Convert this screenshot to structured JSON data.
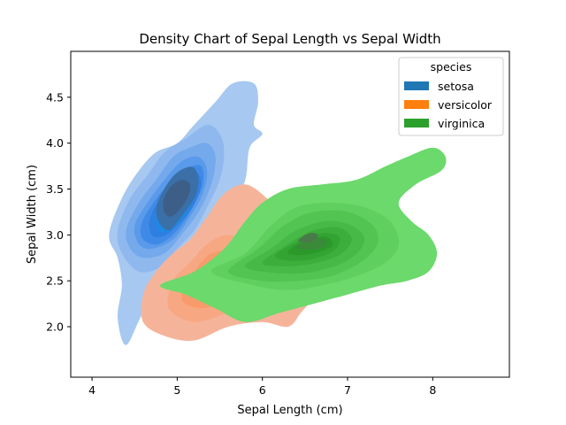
{
  "chart_data": {
    "type": "kde_density",
    "title": "Density Chart of Sepal Length vs Sepal Width",
    "xlabel": "Sepal Length (cm)",
    "ylabel": "Sepal Width (cm)",
    "xlim": [
      3.75,
      8.9
    ],
    "ylim": [
      1.45,
      5.0
    ],
    "xticks": [
      4,
      5,
      6,
      7,
      8
    ],
    "yticks": [
      2.0,
      2.5,
      3.0,
      3.5,
      4.0,
      4.5
    ],
    "grid": false,
    "legend": {
      "title": "species",
      "placement": "top-right"
    },
    "series": [
      {
        "name": "setosa",
        "color": "#1f77b4",
        "fill_colors": [
          "#a7c8f0",
          "#8fb9ee",
          "#74a9ec",
          "#5a9aea",
          "#3f8ae6",
          "#2e7fe0",
          "#1e88e5",
          "#3b6fa8",
          "#3d5e87"
        ],
        "center": [
          5.0,
          3.4
        ],
        "contours": [
          [
            [
              4.3,
              2.75
            ],
            [
              4.2,
              3.0
            ],
            [
              4.35,
              3.4
            ],
            [
              4.55,
              3.7
            ],
            [
              4.75,
              3.9
            ],
            [
              5.0,
              4.0
            ],
            [
              5.2,
              4.2
            ],
            [
              5.45,
              4.45
            ],
            [
              5.65,
              4.65
            ],
            [
              5.9,
              4.65
            ],
            [
              5.95,
              4.45
            ],
            [
              5.9,
              4.2
            ],
            [
              6.0,
              4.1
            ],
            [
              5.85,
              3.95
            ],
            [
              5.8,
              3.6
            ],
            [
              5.65,
              3.35
            ],
            [
              5.4,
              3.1
            ],
            [
              5.2,
              2.85
            ],
            [
              5.0,
              2.55
            ],
            [
              4.8,
              2.3
            ],
            [
              4.6,
              2.15
            ],
            [
              4.4,
              1.8
            ],
            [
              4.3,
              2.1
            ],
            [
              4.35,
              2.45
            ]
          ],
          [
            [
              4.35,
              2.8
            ],
            [
              4.3,
              3.05
            ],
            [
              4.45,
              3.4
            ],
            [
              4.65,
              3.65
            ],
            [
              4.85,
              3.9
            ],
            [
              5.1,
              4.05
            ],
            [
              5.35,
              4.2
            ],
            [
              5.5,
              4.1
            ],
            [
              5.55,
              3.9
            ],
            [
              5.5,
              3.6
            ],
            [
              5.35,
              3.3
            ],
            [
              5.2,
              3.05
            ],
            [
              5.0,
              2.85
            ],
            [
              4.8,
              2.65
            ],
            [
              4.55,
              2.6
            ]
          ],
          [
            [
              4.45,
              2.85
            ],
            [
              4.4,
              3.05
            ],
            [
              4.55,
              3.35
            ],
            [
              4.75,
              3.6
            ],
            [
              4.95,
              3.85
            ],
            [
              5.15,
              3.95
            ],
            [
              5.35,
              4.0
            ],
            [
              5.45,
              3.85
            ],
            [
              5.4,
              3.55
            ],
            [
              5.25,
              3.25
            ],
            [
              5.05,
              3.0
            ],
            [
              4.85,
              2.8
            ],
            [
              4.6,
              2.75
            ]
          ],
          [
            [
              4.55,
              2.9
            ],
            [
              4.5,
              3.1
            ],
            [
              4.65,
              3.35
            ],
            [
              4.85,
              3.6
            ],
            [
              5.05,
              3.8
            ],
            [
              5.25,
              3.85
            ],
            [
              5.35,
              3.7
            ],
            [
              5.3,
              3.45
            ],
            [
              5.15,
              3.2
            ],
            [
              4.95,
              2.95
            ],
            [
              4.7,
              2.85
            ]
          ],
          [
            [
              4.6,
              2.95
            ],
            [
              4.58,
              3.12
            ],
            [
              4.72,
              3.35
            ],
            [
              4.92,
              3.58
            ],
            [
              5.1,
              3.72
            ],
            [
              5.28,
              3.75
            ],
            [
              5.3,
              3.55
            ],
            [
              5.18,
              3.3
            ],
            [
              5.0,
              3.05
            ],
            [
              4.78,
              2.9
            ]
          ],
          [
            [
              4.7,
              3.0
            ],
            [
              4.68,
              3.18
            ],
            [
              4.82,
              3.42
            ],
            [
              5.0,
              3.6
            ],
            [
              5.2,
              3.7
            ],
            [
              5.28,
              3.55
            ],
            [
              5.18,
              3.3
            ],
            [
              4.98,
              3.08
            ],
            [
              4.82,
              2.98
            ]
          ],
          [
            [
              4.78,
              3.05
            ],
            [
              4.76,
              3.22
            ],
            [
              4.9,
              3.45
            ],
            [
              5.05,
              3.6
            ],
            [
              5.2,
              3.62
            ],
            [
              5.22,
              3.45
            ],
            [
              5.1,
              3.22
            ],
            [
              4.92,
              3.05
            ]
          ],
          [
            [
              4.78,
              3.15
            ],
            [
              4.76,
              3.32
            ],
            [
              4.86,
              3.52
            ],
            [
              5.0,
              3.68
            ],
            [
              5.18,
              3.74
            ],
            [
              5.25,
              3.6
            ],
            [
              5.2,
              3.4
            ],
            [
              5.05,
              3.2
            ],
            [
              4.9,
              3.05
            ]
          ],
          [
            [
              4.85,
              3.25
            ],
            [
              4.84,
              3.38
            ],
            [
              4.92,
              3.52
            ],
            [
              5.05,
              3.6
            ],
            [
              5.15,
              3.55
            ],
            [
              5.12,
              3.4
            ],
            [
              5.0,
              3.25
            ],
            [
              4.92,
              3.2
            ]
          ]
        ]
      },
      {
        "name": "versicolor",
        "color": "#ff7f0e",
        "fill_colors": [
          "#f5b49a",
          "#f7a883",
          "#f89b6c",
          "#fa8e55",
          "#fb8240"
        ],
        "center": [
          5.6,
          2.5
        ],
        "contours": [
          [
            [
              4.6,
              2.05
            ],
            [
              4.85,
              1.9
            ],
            [
              5.2,
              1.85
            ],
            [
              5.6,
              2.0
            ],
            [
              6.0,
              2.05
            ],
            [
              6.3,
              2.0
            ],
            [
              6.45,
              2.15
            ],
            [
              6.6,
              2.35
            ],
            [
              6.55,
              2.6
            ],
            [
              6.4,
              2.95
            ],
            [
              6.2,
              3.2
            ],
            [
              6.05,
              3.4
            ],
            [
              5.8,
              3.55
            ],
            [
              5.55,
              3.45
            ],
            [
              5.35,
              3.2
            ],
            [
              5.15,
              2.95
            ],
            [
              4.95,
              2.8
            ],
            [
              4.75,
              2.6
            ],
            [
              4.6,
              2.35
            ]
          ],
          [
            [
              4.9,
              2.2
            ],
            [
              5.2,
              2.05
            ],
            [
              5.6,
              2.15
            ],
            [
              5.9,
              2.2
            ],
            [
              6.1,
              2.35
            ],
            [
              6.05,
              2.6
            ],
            [
              5.85,
              2.85
            ],
            [
              5.6,
              3.0
            ],
            [
              5.35,
              2.9
            ],
            [
              5.15,
              2.7
            ],
            [
              4.95,
              2.5
            ]
          ],
          [
            [
              5.05,
              2.3
            ],
            [
              5.3,
              2.2
            ],
            [
              5.6,
              2.3
            ],
            [
              5.85,
              2.4
            ],
            [
              5.85,
              2.6
            ],
            [
              5.65,
              2.8
            ],
            [
              5.4,
              2.8
            ],
            [
              5.2,
              2.6
            ]
          ],
          [
            [
              5.15,
              2.38
            ],
            [
              5.35,
              2.3
            ],
            [
              5.55,
              2.38
            ],
            [
              5.7,
              2.5
            ],
            [
              5.6,
              2.65
            ],
            [
              5.4,
              2.65
            ],
            [
              5.25,
              2.52
            ]
          ],
          [
            [
              5.25,
              2.45
            ],
            [
              5.4,
              2.38
            ],
            [
              5.52,
              2.45
            ],
            [
              5.55,
              2.55
            ],
            [
              5.42,
              2.6
            ],
            [
              5.3,
              2.55
            ]
          ]
        ]
      },
      {
        "name": "virginica",
        "color": "#2ca02c",
        "fill_colors": [
          "#6bd96b",
          "#5fcf5f",
          "#52c452",
          "#47b947",
          "#3cae3c",
          "#33a333",
          "#2a992a",
          "#3a8a3a",
          "#4a7a4a"
        ],
        "center": [
          6.6,
          3.0
        ],
        "contours": [
          [
            [
              4.8,
              2.45
            ],
            [
              5.2,
              2.6
            ],
            [
              5.55,
              2.85
            ],
            [
              5.8,
              3.15
            ],
            [
              6.0,
              3.35
            ],
            [
              6.3,
              3.5
            ],
            [
              6.7,
              3.55
            ],
            [
              7.1,
              3.6
            ],
            [
              7.45,
              3.75
            ],
            [
              7.7,
              3.85
            ],
            [
              8.0,
              3.95
            ],
            [
              8.15,
              3.85
            ],
            [
              8.1,
              3.7
            ],
            [
              7.8,
              3.55
            ],
            [
              7.6,
              3.35
            ],
            [
              7.75,
              3.15
            ],
            [
              7.95,
              3.0
            ],
            [
              8.05,
              2.8
            ],
            [
              7.95,
              2.6
            ],
            [
              7.7,
              2.5
            ],
            [
              7.4,
              2.45
            ],
            [
              7.0,
              2.35
            ],
            [
              6.6,
              2.25
            ],
            [
              6.2,
              2.15
            ],
            [
              5.8,
              2.05
            ],
            [
              5.45,
              2.2
            ],
            [
              5.1,
              2.35
            ]
          ],
          [
            [
              5.4,
              2.6
            ],
            [
              5.8,
              2.8
            ],
            [
              6.1,
              3.1
            ],
            [
              6.4,
              3.3
            ],
            [
              6.8,
              3.35
            ],
            [
              7.2,
              3.3
            ],
            [
              7.5,
              3.15
            ],
            [
              7.6,
              2.9
            ],
            [
              7.45,
              2.7
            ],
            [
              7.1,
              2.55
            ],
            [
              6.7,
              2.45
            ],
            [
              6.3,
              2.4
            ],
            [
              5.9,
              2.45
            ]
          ],
          [
            [
              5.6,
              2.6
            ],
            [
              5.95,
              2.85
            ],
            [
              6.25,
              3.1
            ],
            [
              6.6,
              3.25
            ],
            [
              7.0,
              3.25
            ],
            [
              7.3,
              3.1
            ],
            [
              7.35,
              2.9
            ],
            [
              7.15,
              2.7
            ],
            [
              6.8,
              2.55
            ],
            [
              6.4,
              2.5
            ],
            [
              6.0,
              2.5
            ]
          ],
          [
            [
              5.8,
              2.65
            ],
            [
              6.1,
              2.85
            ],
            [
              6.4,
              3.05
            ],
            [
              6.75,
              3.15
            ],
            [
              7.05,
              3.1
            ],
            [
              7.2,
              2.95
            ],
            [
              7.05,
              2.75
            ],
            [
              6.7,
              2.62
            ],
            [
              6.3,
              2.58
            ]
          ],
          [
            [
              6.0,
              2.7
            ],
            [
              6.3,
              2.9
            ],
            [
              6.6,
              3.05
            ],
            [
              6.9,
              3.08
            ],
            [
              7.05,
              2.95
            ],
            [
              6.9,
              2.78
            ],
            [
              6.55,
              2.68
            ],
            [
              6.2,
              2.66
            ]
          ],
          [
            [
              6.15,
              2.78
            ],
            [
              6.4,
              2.92
            ],
            [
              6.7,
              3.02
            ],
            [
              6.9,
              2.98
            ],
            [
              6.85,
              2.84
            ],
            [
              6.6,
              2.74
            ],
            [
              6.3,
              2.72
            ]
          ],
          [
            [
              6.3,
              2.82
            ],
            [
              6.5,
              2.94
            ],
            [
              6.75,
              2.98
            ],
            [
              6.82,
              2.88
            ],
            [
              6.6,
              2.8
            ],
            [
              6.4,
              2.78
            ]
          ],
          [
            [
              6.4,
              2.88
            ],
            [
              6.6,
              2.96
            ],
            [
              6.75,
              2.94
            ],
            [
              6.7,
              2.86
            ],
            [
              6.5,
              2.84
            ]
          ],
          [
            [
              6.42,
              2.94
            ],
            [
              6.55,
              3.02
            ],
            [
              6.65,
              3.0
            ],
            [
              6.6,
              2.93
            ],
            [
              6.5,
              2.92
            ]
          ]
        ]
      }
    ]
  }
}
